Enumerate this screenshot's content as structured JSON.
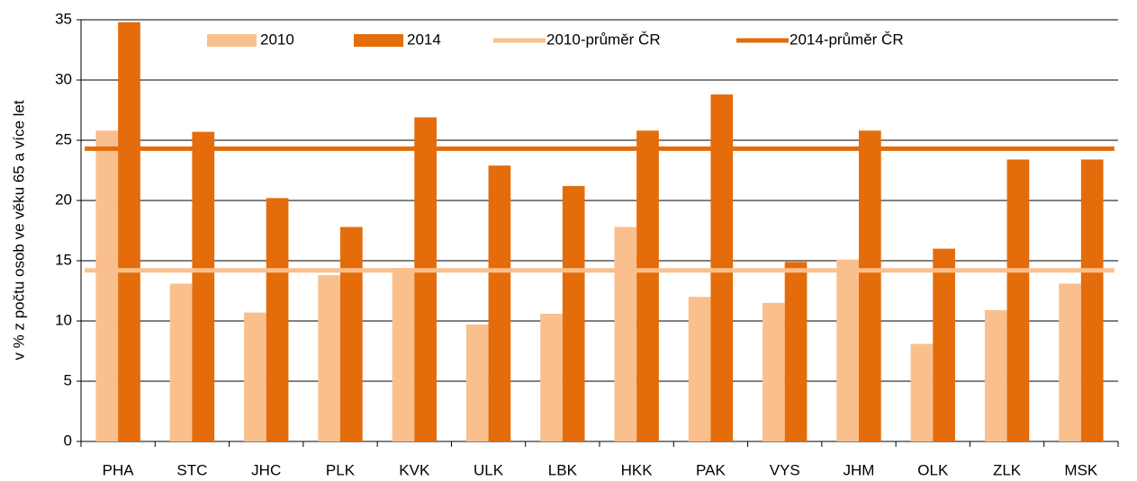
{
  "chart_data": {
    "type": "bar",
    "ylabel": "v % z počtu osob ve věku 65 a více let",
    "categories": [
      "PHA",
      "STC",
      "JHC",
      "PLK",
      "KVK",
      "ULK",
      "LBK",
      "HKK",
      "PAK",
      "VYS",
      "JHM",
      "OLK",
      "ZLK",
      "MSK"
    ],
    "series": [
      {
        "name": "2010",
        "color": "#f9c08e",
        "kind": "bar",
        "values": [
          25.8,
          13.1,
          10.7,
          13.8,
          14.4,
          9.7,
          10.6,
          17.8,
          12.0,
          11.5,
          15.1,
          8.1,
          10.9,
          13.1
        ]
      },
      {
        "name": "2014",
        "color": "#e46c0a",
        "kind": "bar",
        "values": [
          34.8,
          25.7,
          20.2,
          17.8,
          26.9,
          22.9,
          21.2,
          25.8,
          28.8,
          14.9,
          25.8,
          16.0,
          23.4,
          23.4
        ]
      },
      {
        "name": "2010-průměr ČR",
        "color": "#f9c08e",
        "kind": "line",
        "values": [
          14.2,
          14.2,
          14.2,
          14.2,
          14.2,
          14.2,
          14.2,
          14.2,
          14.2,
          14.2,
          14.2,
          14.2,
          14.2,
          14.2
        ]
      },
      {
        "name": "2014-průměr ČR",
        "color": "#e46c0a",
        "kind": "line",
        "values": [
          24.3,
          24.3,
          24.3,
          24.3,
          24.3,
          24.3,
          24.3,
          24.3,
          24.3,
          24.3,
          24.3,
          24.3,
          24.3,
          24.3
        ]
      }
    ],
    "ylim": [
      0,
      35
    ],
    "yticks": [
      0,
      5,
      10,
      15,
      20,
      25,
      30,
      35
    ],
    "grid": true
  }
}
